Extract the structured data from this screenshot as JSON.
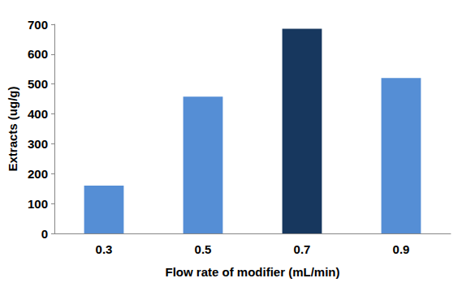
{
  "chart_data": {
    "type": "bar",
    "x_label": "Flow rate of modifier (mL/min)",
    "y_label": "Extracts (ug/g)",
    "categories": [
      "0.3",
      "0.5",
      "0.7",
      "0.9"
    ],
    "values": [
      160,
      458,
      685,
      520
    ],
    "colors": [
      "#558ed5",
      "#558ed5",
      "#17375e",
      "#558ed5"
    ],
    "ylim": [
      0,
      700
    ],
    "yticks": [
      0,
      100,
      200,
      300,
      400,
      500,
      600,
      700
    ],
    "grid": false
  }
}
